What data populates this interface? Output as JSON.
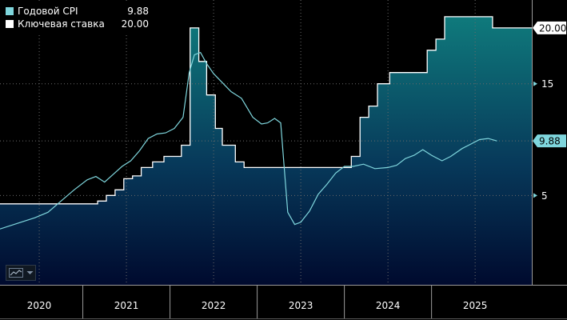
{
  "legend": {
    "cpi_label": "Годовой CPI",
    "cpi_value": "9.88",
    "rate_label": "Ключевая ставка",
    "rate_value": "20.00"
  },
  "toolbar": {
    "chart_style_icon": "line-chart-icon",
    "dropdown_icon": "caret-down-icon"
  },
  "chart_data": {
    "type": "line",
    "ylim": [
      -3,
      22.5
    ],
    "xlim": [
      2019.55,
      2025.65
    ],
    "grid": true,
    "legend_placement": "top-left",
    "y_ticks": [
      5,
      15
    ],
    "x_tick_labels": [
      "2020",
      "2021",
      "2022",
      "2023",
      "2024",
      "2025"
    ],
    "x_tick_positions": [
      2020.0,
      2021.0,
      2022.0,
      2023.0,
      2024.0,
      2025.0
    ],
    "year_boundaries": [
      2020.5,
      2021.5,
      2022.5,
      2023.5,
      2024.5
    ],
    "last_value_labels": [
      {
        "series": "rate",
        "value": "20.00",
        "y": 20.0
      },
      {
        "series": "cpi",
        "value": "9.88",
        "y": 9.88
      }
    ],
    "colors": {
      "cpi": "#7fd6dd",
      "rate": "#ffffff",
      "area_top": "#0f7a7c",
      "area_bottom": "#000a2e",
      "grid": "#6a6a6a",
      "axis": "#9a9a9a"
    },
    "series": [
      {
        "name": "Ключевая ставка",
        "key": "rate",
        "step": true,
        "x": [
          2019.55,
          2019.62,
          2020.08,
          2020.32,
          2020.42,
          2020.57,
          2020.67,
          2020.77,
          2020.87,
          2020.97,
          2021.07,
          2021.17,
          2021.3,
          2021.43,
          2021.63,
          2021.73,
          2021.83,
          2021.92,
          2022.02,
          2022.1,
          2022.25,
          2022.35,
          2022.45,
          2023.48,
          2023.58,
          2023.68,
          2023.78,
          2023.88,
          2024.02,
          2024.15,
          2024.25,
          2024.35,
          2024.45,
          2024.55,
          2024.65,
          2025.1,
          2025.2,
          2025.65
        ],
        "values": [
          4.25,
          4.25,
          4.25,
          4.25,
          4.25,
          4.25,
          4.5,
          5.0,
          5.5,
          6.5,
          6.75,
          7.5,
          8.0,
          8.5,
          9.5,
          20.0,
          17.0,
          14.0,
          11.0,
          9.5,
          8.0,
          7.5,
          7.5,
          7.5,
          8.5,
          12.0,
          13.0,
          15.0,
          16.0,
          16.0,
          16.0,
          16.0,
          18.0,
          19.0,
          21.0,
          21.0,
          20.0,
          20.0
        ]
      },
      {
        "name": "Годовой CPI",
        "key": "cpi",
        "step": false,
        "x": [
          2019.55,
          2019.75,
          2019.95,
          2020.1,
          2020.25,
          2020.4,
          2020.55,
          2020.65,
          2020.75,
          2020.85,
          2020.95,
          2021.05,
          2021.15,
          2021.25,
          2021.35,
          2021.45,
          2021.55,
          2021.65,
          2021.72,
          2021.78,
          2021.85,
          2021.92,
          2022.0,
          2022.1,
          2022.2,
          2022.32,
          2022.45,
          2022.55,
          2022.62,
          2022.7,
          2022.77,
          2022.85,
          2022.93,
          2023.0,
          2023.1,
          2023.2,
          2023.3,
          2023.4,
          2023.5,
          2023.6,
          2023.72,
          2023.85,
          2024.0,
          2024.1,
          2024.2,
          2024.3,
          2024.4,
          2024.5,
          2024.62,
          2024.72,
          2024.85,
          2024.95,
          2025.05,
          2025.15,
          2025.25
        ],
        "values": [
          2.0,
          2.5,
          3.0,
          3.5,
          4.5,
          5.5,
          6.4,
          6.7,
          6.2,
          6.9,
          7.6,
          8.1,
          9.0,
          10.1,
          10.5,
          10.6,
          11.0,
          12.0,
          16.0,
          17.6,
          17.8,
          16.8,
          15.9,
          15.1,
          14.3,
          13.7,
          12.0,
          11.4,
          11.5,
          11.9,
          11.5,
          3.5,
          2.4,
          2.6,
          3.6,
          5.1,
          6.0,
          7.0,
          7.6,
          7.6,
          7.8,
          7.4,
          7.5,
          7.7,
          8.3,
          8.6,
          9.1,
          8.6,
          8.1,
          8.5,
          9.2,
          9.6,
          10.0,
          10.1,
          9.88
        ]
      }
    ]
  }
}
